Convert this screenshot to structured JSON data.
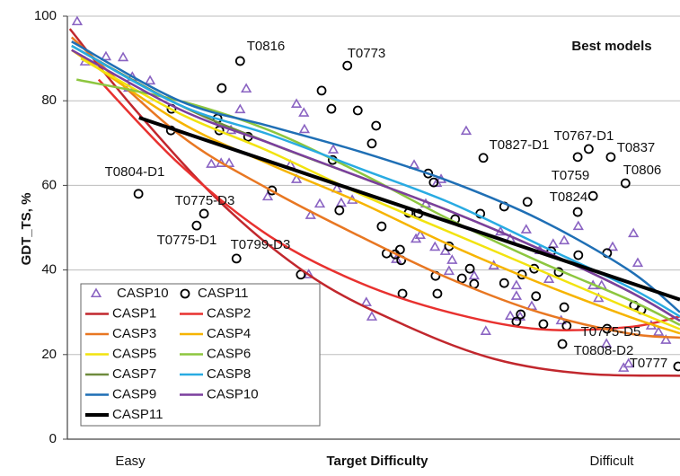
{
  "chart_data": {
    "type": "scatter",
    "title": "Best models",
    "y_label": "GDT_TS, %",
    "x_label": "Target Difficulty",
    "x_end_labels": [
      "Easy",
      "Difficult"
    ],
    "xlim": [
      0,
      100
    ],
    "ylim": [
      0,
      100
    ],
    "yticks": [
      0,
      20,
      40,
      60,
      80,
      100
    ],
    "grid": true,
    "legend": "bottom-left",
    "series": [
      {
        "name": "CASP10",
        "type": "scatter",
        "marker": "triangle",
        "color": "#8a63c2",
        "x": [
          1.6,
          2.9,
          6.3,
          9.1,
          10.0,
          10.6,
          13.5,
          23.5,
          25.1,
          26.4,
          26.7,
          28.2,
          29.2,
          32.7,
          36.4,
          37.4,
          37.4,
          38.6,
          38.7,
          39.4,
          39.7,
          41.2,
          43.4,
          44.0,
          44.7,
          46.5,
          48.8,
          49.7,
          53.7,
          56.6,
          56.9,
          57.6,
          58.5,
          60.0,
          60.3,
          61.0,
          61.7,
          62.3,
          62.8,
          65.1,
          66.4,
          68.3,
          69.6,
          70.7,
          72.3,
          72.3,
          73.3,
          73.3,
          73.9,
          74.9,
          75.8,
          77.1,
          78.6,
          79.3,
          80.6,
          81.1,
          83.4,
          85.8,
          86.7,
          87.2,
          88.0,
          89.0,
          90.8,
          91.6,
          92.4,
          93.1,
          95.3,
          96.5,
          97.7
        ],
        "values": [
          98.7,
          89.2,
          90.4,
          90.2,
          83.0,
          85.6,
          84.7,
          65.0,
          65.2,
          65.2,
          73.0,
          77.9,
          82.8,
          57.3,
          64.8,
          61.4,
          79.2,
          77.1,
          73.2,
          38.9,
          52.9,
          55.6,
          68.4,
          59.2,
          55.8,
          56.5,
          32.3,
          28.9,
          42.5,
          64.8,
          47.3,
          48.2,
          55.6,
          45.4,
          60.5,
          61.4,
          44.4,
          39.7,
          42.3,
          72.8,
          38.6,
          25.5,
          41.0,
          49.0,
          47.3,
          29.1,
          36.3,
          33.8,
          28.9,
          49.5,
          31.4,
          44.6,
          37.8,
          46.1,
          28.0,
          46.9,
          50.3,
          36.3,
          33.3,
          36.3,
          22.5,
          45.4,
          16.8,
          17.8,
          48.6,
          41.6,
          26.8,
          25.3,
          23.4
        ]
      },
      {
        "name": "CASP11",
        "type": "scatter",
        "marker": "circle",
        "color": "#000000",
        "x": [
          11.6,
          16.9,
          17.0,
          22.3,
          21.1,
          24.5,
          24.8,
          25.2,
          28.2,
          29.5,
          27.6,
          33.4,
          38.1,
          41.5,
          43.1,
          43.3,
          44.4,
          45.7,
          47.4,
          49.7,
          50.4,
          51.3,
          52.1,
          53.5,
          54.3,
          54.7,
          54.5,
          55.7,
          57.3,
          58.9,
          59.8,
          60.1,
          60.4,
          62.3,
          63.3,
          64.4,
          65.7,
          66.4,
          67.4,
          67.9,
          71.3,
          71.3,
          73.3,
          74.0,
          75.1,
          74.2,
          76.2,
          76.5,
          77.7,
          79.0,
          80.2,
          81.1,
          81.5,
          80.8,
          83.3,
          83.4,
          83.3,
          85.1,
          85.8,
          88.1,
          88.1,
          88.7,
          91.1,
          92.5,
          93.7,
          99.7
        ],
        "values": [
          58.0,
          73.0,
          78.1,
          53.3,
          50.5,
          75.8,
          73.0,
          83.0,
          89.4,
          71.5,
          42.7,
          58.8,
          38.9,
          82.4,
          78.1,
          66.0,
          54.1,
          88.3,
          77.7,
          69.9,
          74.1,
          50.3,
          43.9,
          43.7,
          44.8,
          34.4,
          42.3,
          53.5,
          53.3,
          62.8,
          60.7,
          38.6,
          34.4,
          45.6,
          52.0,
          38.0,
          40.3,
          36.7,
          53.3,
          66.5,
          55.0,
          36.9,
          27.8,
          29.5,
          56.1,
          38.9,
          40.3,
          33.8,
          27.2,
          44.4,
          39.5,
          31.2,
          26.8,
          22.5,
          53.7,
          43.5,
          66.7,
          68.6,
          57.5,
          26.1,
          44.0,
          66.7,
          60.5,
          31.6,
          30.6,
          17.2
        ]
      },
      {
        "name": "CASP1",
        "type": "line",
        "color": "#c1272d",
        "width": 2.5,
        "x": [
          0.4,
          11.0,
          25.7,
          40.3,
          55.0,
          69.6,
          84.3,
          100
        ],
        "values": [
          97,
          78,
          55,
          38,
          27,
          19,
          15.5,
          15
        ]
      },
      {
        "name": "CASP2",
        "type": "line",
        "color": "#e8312f",
        "width": 2.5,
        "x": [
          5.1,
          18.3,
          33.0,
          47.7,
          62.3,
          77.0,
          91.6,
          100
        ],
        "values": [
          85,
          65,
          48,
          37,
          30,
          26,
          26.5,
          29
        ]
      },
      {
        "name": "CASP3",
        "type": "line",
        "color": "#e87722",
        "width": 2.5,
        "x": [
          0.7,
          18.3,
          33.0,
          47.7,
          62.3,
          77.0,
          91.6,
          100
        ],
        "values": [
          95,
          72,
          59,
          48,
          38,
          30,
          25,
          24
        ]
      },
      {
        "name": "CASP4",
        "type": "line",
        "color": "#f6b400",
        "width": 2.5,
        "x": [
          0.7,
          18.3,
          33.0,
          47.7,
          62.3,
          77.0,
          91.6,
          100
        ],
        "values": [
          92,
          75,
          65,
          56,
          46,
          37,
          29,
          25
        ]
      },
      {
        "name": "CASP5",
        "type": "line",
        "color": "#f2e30f",
        "width": 2.5,
        "x": [
          2.2,
          18.3,
          33.0,
          47.7,
          62.3,
          77.0,
          91.6,
          100
        ],
        "values": [
          90,
          77,
          68,
          58,
          49,
          40,
          31,
          26
        ]
      },
      {
        "name": "CASP6",
        "type": "line",
        "color": "#8dc63f",
        "width": 2.5,
        "x": [
          1.5,
          18.3,
          33.0,
          47.7,
          62.3,
          77.0,
          91.6,
          100
        ],
        "values": [
          85,
          80,
          73,
          63,
          52,
          42,
          33,
          27
        ]
      },
      {
        "name": "CASP7",
        "type": "line",
        "color": "#6e8b3d",
        "width": 2.5,
        "x": [
          0.7,
          18.3,
          33.0,
          47.7,
          62.3,
          77.0,
          91.6,
          100
        ],
        "values": [
          93,
          79,
          70,
          62,
          54,
          45,
          35,
          28
        ]
      },
      {
        "name": "CASP8",
        "type": "line",
        "color": "#29abe2",
        "width": 2.5,
        "x": [
          0.7,
          18.3,
          33.0,
          47.7,
          62.3,
          77.0,
          91.6,
          100
        ],
        "values": [
          93,
          79,
          72,
          64,
          56,
          46,
          36,
          29
        ]
      },
      {
        "name": "CASP9",
        "type": "line",
        "color": "#1f6fb5",
        "width": 2.5,
        "x": [
          0.7,
          18.3,
          33.0,
          47.7,
          62.3,
          77.0,
          91.6,
          100
        ],
        "values": [
          94,
          80,
          74,
          68,
          61,
          52,
          40,
          30
        ]
      },
      {
        "name": "CASP10",
        "type": "line",
        "color": "#7b3f9e",
        "width": 2.5,
        "x": [
          0.7,
          18.3,
          33.0,
          47.7,
          62.3,
          77.0,
          91.6,
          100
        ],
        "values": [
          92,
          78,
          70,
          62,
          54,
          45,
          35,
          28
        ]
      },
      {
        "name": "CASP11",
        "type": "line",
        "color": "#000000",
        "width": 4,
        "x": [
          11.7,
          100
        ],
        "values": [
          76,
          33
        ]
      }
    ],
    "annotations": [
      "T0816",
      "T0773",
      "T0804-D1",
      "T0775-D3",
      "T0775-D1",
      "T0799-D3",
      "T0827-D1",
      "T0767-D1",
      "T0837",
      "T0759",
      "T0806",
      "T0824",
      "T0775-D5",
      "T0808-D2",
      "T0777"
    ]
  }
}
